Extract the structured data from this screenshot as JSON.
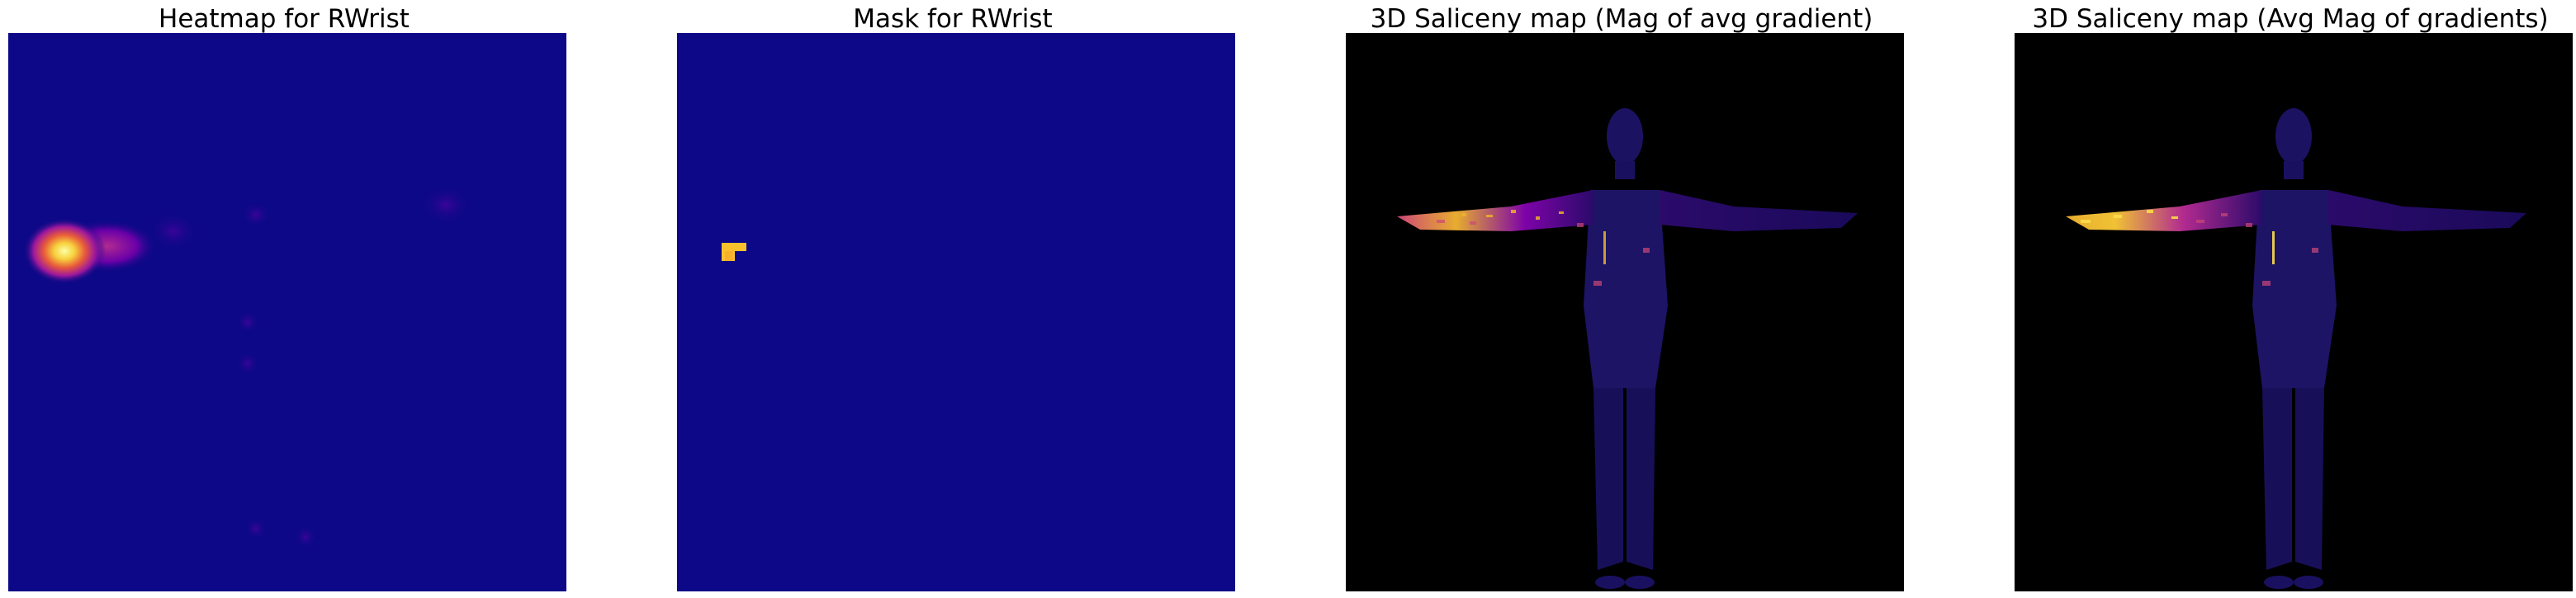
{
  "panels": [
    {
      "title": "Heatmap for RWrist",
      "colormap": "plasma",
      "background": "#0d0887"
    },
    {
      "title": "Mask for RWrist",
      "colormap": "plasma",
      "background": "#0d0887",
      "mask_color": "#f9c22d"
    },
    {
      "title": "3D Saliceny map (Mag of avg gradient)",
      "colormap": "plasma",
      "background": "#000000"
    },
    {
      "title": "3D Saliceny map (Avg Mag of gradients)",
      "colormap": "plasma",
      "background": "#000000"
    }
  ]
}
